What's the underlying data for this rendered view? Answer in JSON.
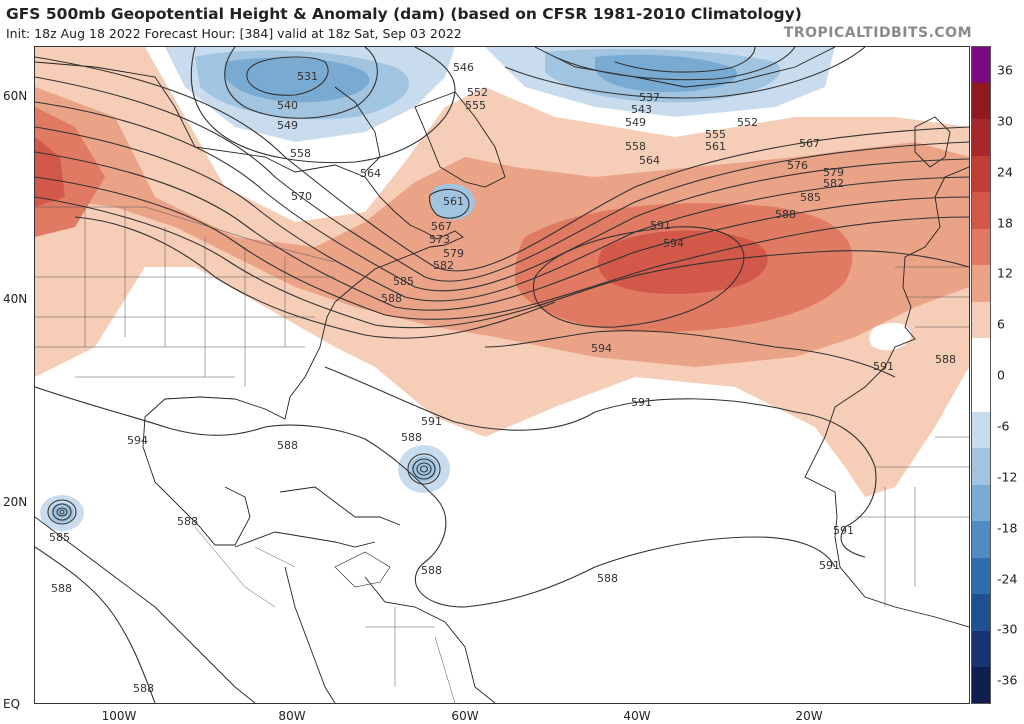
{
  "header": {
    "title": "GFS 500mb Geopotential Height & Anomaly (dam) (based on CFSR 1981-2010 Climatology)",
    "subtitle": "Init: 18z Aug 18 2022   Forecast Hour: [384]   valid at 18z Sat, Sep 03 2022",
    "brand": "TROPICALTIDBITS.COM"
  },
  "axes": {
    "lat_labels": [
      "60N",
      "40N",
      "20N",
      "EQ"
    ],
    "lon_labels": [
      "100W",
      "80W",
      "60W",
      "40W",
      "20W"
    ]
  },
  "colorbar": {
    "labels": [
      "36",
      "30",
      "24",
      "18",
      "12",
      "6",
      "0",
      "-6",
      "-12",
      "-18",
      "-24",
      "-30",
      "-36"
    ],
    "colors": [
      "#7b0a7e",
      "#8e1a1e",
      "#a8282a",
      "#c23d33",
      "#d2584a",
      "#e07a62",
      "#eba387",
      "#f6cdb6",
      "#ffffff",
      "#ffffff",
      "#c9dced",
      "#a1c4e1",
      "#78aad2",
      "#4f8cc2",
      "#2f6eae",
      "#1f5090",
      "#163471",
      "#0f1d4f"
    ]
  },
  "contour_labels": [
    {
      "t": "531"
    },
    {
      "t": "540"
    },
    {
      "t": "549"
    },
    {
      "t": "558"
    },
    {
      "t": "564"
    },
    {
      "t": "570"
    },
    {
      "t": "546"
    },
    {
      "t": "552"
    },
    {
      "t": "555"
    },
    {
      "t": "537"
    },
    {
      "t": "543"
    },
    {
      "t": "549"
    },
    {
      "t": "552"
    },
    {
      "t": "555"
    },
    {
      "t": "558"
    },
    {
      "t": "561"
    },
    {
      "t": "564"
    },
    {
      "t": "567"
    },
    {
      "t": "576"
    },
    {
      "t": "579"
    },
    {
      "t": "582"
    },
    {
      "t": "585"
    },
    {
      "t": "588"
    },
    {
      "t": "591"
    },
    {
      "t": "594"
    },
    {
      "t": "594"
    },
    {
      "t": "561"
    },
    {
      "t": "567"
    },
    {
      "t": "573"
    },
    {
      "t": "579"
    },
    {
      "t": "582"
    },
    {
      "t": "585"
    },
    {
      "t": "588"
    },
    {
      "t": "591"
    },
    {
      "t": "588"
    },
    {
      "t": "591"
    },
    {
      "t": "591"
    },
    {
      "t": "591"
    },
    {
      "t": "594"
    },
    {
      "t": "588"
    },
    {
      "t": "588"
    },
    {
      "t": "588"
    },
    {
      "t": "588"
    },
    {
      "t": "585"
    },
    {
      "t": "588"
    },
    {
      "t": "588"
    },
    {
      "t": "591"
    },
    {
      "t": "588"
    }
  ]
}
